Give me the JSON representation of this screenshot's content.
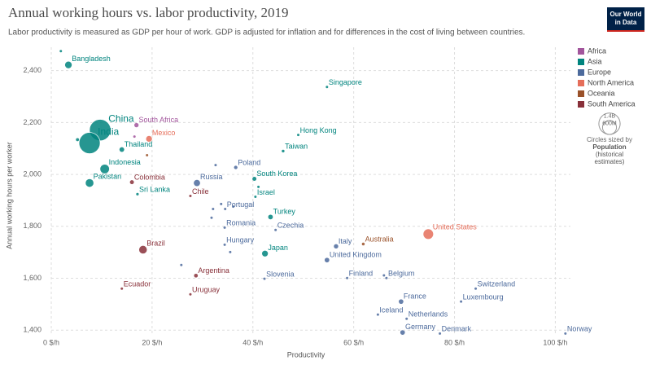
{
  "chart_data": {
    "type": "scatter",
    "title": "Annual working hours vs. labor productivity, 2019",
    "subtitle": "Labor productivity is measured as GDP per hour of work. GDP is adjusted for inflation and for differences in the cost of living between countries.",
    "logo": [
      "Our World",
      "in Data"
    ],
    "x_label": "Productivity",
    "y_label": "Annual working hours per worker",
    "xlim": [
      0,
      103
    ],
    "xticks": [
      {
        "value": 0,
        "label": "0 $/h"
      },
      {
        "value": 20,
        "label": "20 $/h"
      },
      {
        "value": 40,
        "label": "40 $/h"
      },
      {
        "value": 60,
        "label": "60 $/h"
      },
      {
        "value": 80,
        "label": "80 $/h"
      },
      {
        "value": 100,
        "label": "100 $/h"
      }
    ],
    "ylim": [
      1385,
      2490
    ],
    "yticks": [
      {
        "value": 1400,
        "label": "1,400"
      },
      {
        "value": 1600,
        "label": "1,600"
      },
      {
        "value": 1800,
        "label": "1,800"
      },
      {
        "value": 2000,
        "label": "2,000"
      },
      {
        "value": 2200,
        "label": "2,200"
      },
      {
        "value": 2400,
        "label": "2,400"
      }
    ],
    "grid": true,
    "regions": [
      {
        "name": "Africa",
        "color": "#a2559c"
      },
      {
        "name": "Asia",
        "color": "#00847e"
      },
      {
        "name": "Europe",
        "color": "#4c6a9c"
      },
      {
        "name": "North America",
        "color": "#e56e5a"
      },
      {
        "name": "Oceania",
        "color": "#9a5129"
      },
      {
        "name": "South America",
        "color": "#883039"
      }
    ],
    "size_legend": {
      "values": [
        1400,
        600
      ],
      "value_labels": [
        "1.4B",
        "600M"
      ],
      "title": "Circles sized by",
      "label": [
        "Population",
        "(historical",
        "estimates)"
      ]
    },
    "points": [
      {
        "name": "Bangladesh",
        "region": "Asia",
        "x": 3.4,
        "y": 2422,
        "size": 163
      },
      {
        "name": "China",
        "region": "Asia",
        "x": 9.7,
        "y": 2171,
        "size": 1400
      },
      {
        "name": "India",
        "region": "Asia",
        "x": 7.6,
        "y": 2121,
        "size": 1370
      },
      {
        "name": "South Africa",
        "region": "Africa",
        "x": 16.9,
        "y": 2190,
        "size": 58
      },
      {
        "name": "Mexico",
        "region": "North America",
        "x": 19.4,
        "y": 2137,
        "size": 127
      },
      {
        "name": "Thailand",
        "region": "Asia",
        "x": 14.0,
        "y": 2096,
        "size": 70
      },
      {
        "name": "Indonesia",
        "region": "Asia",
        "x": 10.6,
        "y": 2021,
        "size": 270
      },
      {
        "name": "Pakistan",
        "region": "Asia",
        "x": 7.6,
        "y": 1967,
        "size": 217
      },
      {
        "name": "Colombia",
        "region": "South America",
        "x": 16.0,
        "y": 1970,
        "size": 50
      },
      {
        "name": "Sri Lanka",
        "region": "Asia",
        "x": 17.1,
        "y": 1924,
        "size": 21
      },
      {
        "name": "Russia",
        "region": "Europe",
        "x": 28.9,
        "y": 1967,
        "size": 145
      },
      {
        "name": "Poland",
        "region": "Europe",
        "x": 36.6,
        "y": 2027,
        "size": 38
      },
      {
        "name": "South Korea",
        "region": "Asia",
        "x": 40.3,
        "y": 1983,
        "size": 51
      },
      {
        "name": "Chile",
        "region": "South America",
        "x": 27.6,
        "y": 1917,
        "size": 19
      },
      {
        "name": "Israel",
        "region": "Asia",
        "x": 40.5,
        "y": 1914,
        "size": 9
      },
      {
        "name": "Portugal",
        "region": "Europe",
        "x": 34.5,
        "y": 1867,
        "size": 10
      },
      {
        "name": "Turkey",
        "region": "Asia",
        "x": 43.5,
        "y": 1836,
        "size": 83
      },
      {
        "name": "Romania",
        "region": "Europe",
        "x": 34.4,
        "y": 1795,
        "size": 19
      },
      {
        "name": "Czechia",
        "region": "Europe",
        "x": 44.5,
        "y": 1786,
        "size": 11
      },
      {
        "name": "United States",
        "region": "North America",
        "x": 74.8,
        "y": 1770,
        "size": 329
      },
      {
        "name": "Hong Kong",
        "region": "Asia",
        "x": 49.0,
        "y": 2152,
        "size": 7
      },
      {
        "name": "Taiwan",
        "region": "Asia",
        "x": 46.0,
        "y": 2090,
        "size": 24
      },
      {
        "name": "Singapore",
        "region": "Asia",
        "x": 54.7,
        "y": 2337,
        "size": 6
      },
      {
        "name": "Brazil",
        "region": "South America",
        "x": 18.2,
        "y": 1710,
        "size": 211
      },
      {
        "name": "Hungary",
        "region": "Europe",
        "x": 34.4,
        "y": 1729,
        "size": 10
      },
      {
        "name": "Japan",
        "region": "Asia",
        "x": 42.4,
        "y": 1695,
        "size": 126
      },
      {
        "name": "Italy",
        "region": "Europe",
        "x": 56.5,
        "y": 1723,
        "size": 60
      },
      {
        "name": "Australia",
        "region": "Oceania",
        "x": 61.9,
        "y": 1732,
        "size": 25
      },
      {
        "name": "United Kingdom",
        "region": "Europe",
        "x": 54.7,
        "y": 1670,
        "size": 67
      },
      {
        "name": "Argentina",
        "region": "South America",
        "x": 28.7,
        "y": 1610,
        "size": 45
      },
      {
        "name": "Slovenia",
        "region": "Europe",
        "x": 42.3,
        "y": 1598,
        "size": 2
      },
      {
        "name": "Finland",
        "region": "Europe",
        "x": 58.7,
        "y": 1601,
        "size": 5.5
      },
      {
        "name": "Belgium",
        "region": "Europe",
        "x": 66.5,
        "y": 1601,
        "size": 11.5
      },
      {
        "name": "Ecuador",
        "region": "South America",
        "x": 14.0,
        "y": 1560,
        "size": 17
      },
      {
        "name": "Uruguay",
        "region": "South America",
        "x": 27.6,
        "y": 1538,
        "size": 3.5
      },
      {
        "name": "Switzerland",
        "region": "Europe",
        "x": 84.2,
        "y": 1560,
        "size": 8.6
      },
      {
        "name": "France",
        "region": "Europe",
        "x": 69.4,
        "y": 1510,
        "size": 67
      },
      {
        "name": "Luxembourg",
        "region": "Europe",
        "x": 81.3,
        "y": 1510,
        "size": 0.6
      },
      {
        "name": "Iceland",
        "region": "Europe",
        "x": 64.8,
        "y": 1460,
        "size": 0.36
      },
      {
        "name": "Netherlands",
        "region": "Europe",
        "x": 70.5,
        "y": 1444,
        "size": 17
      },
      {
        "name": "Germany",
        "region": "Europe",
        "x": 69.7,
        "y": 1391,
        "size": 83
      },
      {
        "name": "Denmark",
        "region": "Europe",
        "x": 77.1,
        "y": 1387,
        "size": 5.8
      },
      {
        "name": "Norway",
        "region": "Europe",
        "x": 102,
        "y": 1387,
        "size": 5.3
      },
      {
        "region": "Asia",
        "x": 1.9,
        "y": 2475,
        "size": 5
      },
      {
        "region": "Asia",
        "x": 5.2,
        "y": 2134,
        "size": 30
      },
      {
        "region": "Africa",
        "x": 16.5,
        "y": 2146,
        "size": 5
      },
      {
        "region": "Oceania",
        "x": 19.0,
        "y": 2074,
        "size": 3
      },
      {
        "region": "Europe",
        "x": 32.6,
        "y": 2036,
        "size": 4
      },
      {
        "region": "Europe",
        "x": 33.7,
        "y": 1886,
        "size": 4
      },
      {
        "region": "Europe",
        "x": 32.1,
        "y": 1867,
        "size": 4
      },
      {
        "region": "Europe",
        "x": 31.8,
        "y": 1833,
        "size": 4
      },
      {
        "region": "Europe",
        "x": 36.1,
        "y": 1876,
        "size": 4
      },
      {
        "region": "Asia",
        "x": 41.1,
        "y": 1952,
        "size": 4
      },
      {
        "region": "Europe",
        "x": 25.8,
        "y": 1651,
        "size": 4
      },
      {
        "region": "Europe",
        "x": 35.5,
        "y": 1701,
        "size": 4
      },
      {
        "region": "Europe",
        "x": 66.0,
        "y": 1611,
        "size": 4
      }
    ]
  }
}
